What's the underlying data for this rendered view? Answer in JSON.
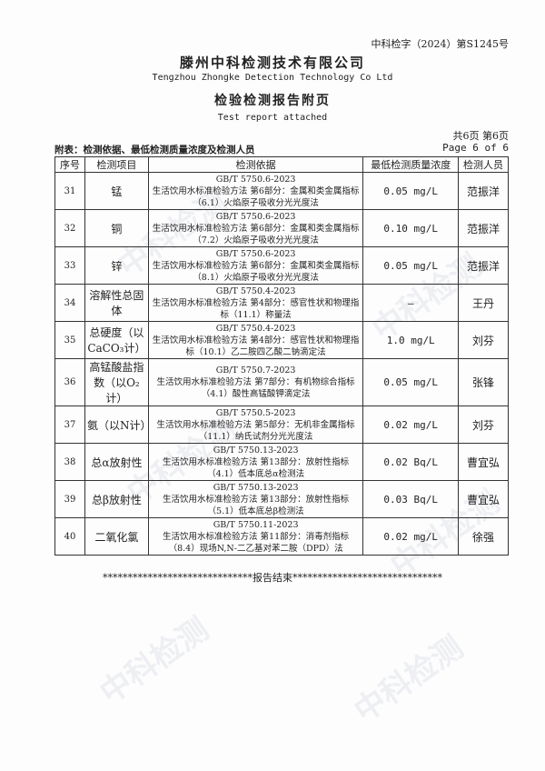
{
  "report_no": "中科检字（2024）第S1245号",
  "company_cn": "滕州中科检测技术有限公司",
  "company_en": "Tengzhou Zhongke Detection Technology Co Ltd",
  "title_cn": "检验检测报告附页",
  "title_en": "Test report attached",
  "page_cn": "共6页 第6页",
  "page_en": "Page 6 of 6",
  "table_caption": "附表：检测依据、最低检测质量浓度及检测人员",
  "headers": [
    "序号",
    "检测项目",
    "检测依据",
    "最低检测质量浓度",
    "检测人员"
  ],
  "rows": [
    {
      "no": "31",
      "item": "锰",
      "std": "GB/T 5750.6-2023",
      "method": "生活饮用水标准检验方法 第6部分：金属和类金属指标（6.1）火焰原子吸收分光光度法",
      "limit": "0.05 mg/L",
      "person": "范振洋"
    },
    {
      "no": "32",
      "item": "铜",
      "std": "GB/T 5750.6-2023",
      "method": "生活饮用水标准检验方法 第6部分：金属和类金属指标（7.2）火焰原子吸收分光光度法",
      "limit": "0.10 mg/L",
      "person": "范振洋"
    },
    {
      "no": "33",
      "item": "锌",
      "std": "GB/T 5750.6-2023",
      "method": "生活饮用水标准检验方法 第6部分：金属和类金属指标（8.1）火焰原子吸收分光光度法",
      "limit": "0.05 mg/L",
      "person": "范振洋"
    },
    {
      "no": "34",
      "item": "溶解性总固体",
      "std": "GB/T 5750.4-2023",
      "method": "生活饮用水标准检验方法 第4部分：感官性状和物理指标（11.1）称量法",
      "limit": "—",
      "person": "王丹"
    },
    {
      "no": "35",
      "item": "总硬度（以CaCO₃计）",
      "std": "GB/T 5750.4-2023",
      "method": "生活饮用水标准检验方法 第4部分：感官性状和物理指标（10.1）乙二胺四乙酸二钠滴定法",
      "limit": "1.0 mg/L",
      "person": "刘芬"
    },
    {
      "no": "36",
      "item": "高锰酸盐指数（以O₂计）",
      "std": "GB/T 5750.7-2023",
      "method": "生活饮用水标准检验方法 第7部分：有机物综合指标（4.1）酸性高锰酸钾滴定法",
      "limit": "0.05 mg/L",
      "person": "张锋"
    },
    {
      "no": "37",
      "item": "氨（以N计）",
      "std": "GB/T 5750.5-2023",
      "method": "生活饮用水标准检验方法 第5部分：无机非金属指标（11.1）纳氏试剂分光光度法",
      "limit": "0.02 mg/L",
      "person": "刘芬"
    },
    {
      "no": "38",
      "item": "总α放射性",
      "std": "GB/T 5750.13-2023",
      "method": "生活饮用水标准检验方法 第13部分：放射性指标（4.1）低本底总α检测法",
      "limit": "0.02 Bq/L",
      "person": "曹宜弘"
    },
    {
      "no": "39",
      "item": "总β放射性",
      "std": "GB/T 5750.13-2023",
      "method": "生活饮用水标准检验方法 第13部分：放射性指标（5.1）低本底总β检测法",
      "limit": "0.03 Bq/L",
      "person": "曹宜弘"
    },
    {
      "no": "40",
      "item": "二氧化氯",
      "std": "GB/T 5750.11-2023",
      "method": "生活饮用水标准检验方法 第11部分：消毒剂指标（8.4）现场N,N-二乙基对苯二胺（DPD）法",
      "limit": "0.02 mg/L",
      "person": "徐强"
    }
  ],
  "end_line": "******************************报告结束******************************",
  "watermark": "中科检测"
}
